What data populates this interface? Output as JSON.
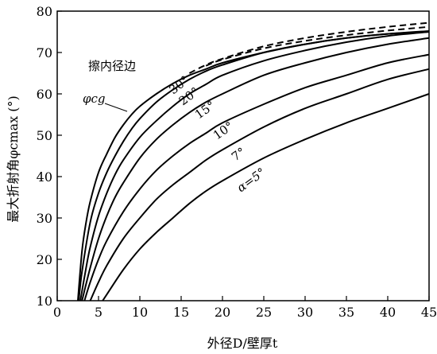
{
  "chart_data": {
    "type": "line",
    "xlabel": "外径D/壁厚t",
    "ylabel": "最大折射角φcmax (°)",
    "xlim": [
      0,
      45
    ],
    "ylim": [
      10,
      80
    ],
    "xticks": [
      "0",
      "5",
      "10",
      "15",
      "20",
      "25",
      "30",
      "35",
      "40",
      "45"
    ],
    "yticks": [
      "10",
      "20",
      "30",
      "40",
      "50",
      "60",
      "70",
      "80"
    ],
    "annotation": "擦内径边",
    "series": [
      {
        "name": "φcg",
        "style": "solid",
        "x": [
          2.5,
          3,
          3.5,
          4,
          5,
          6,
          7,
          8,
          9,
          10,
          12,
          14,
          16,
          18,
          20,
          25,
          30,
          35,
          40,
          45
        ],
        "y": [
          10,
          22,
          29,
          34,
          41,
          45.5,
          49.5,
          52.5,
          55,
          57,
          60,
          62.5,
          64.5,
          66,
          67.5,
          70,
          72,
          73.5,
          74.5,
          75
        ]
      },
      {
        "name": "30°",
        "style": "solid",
        "x": [
          2.6,
          3,
          4,
          5,
          6,
          7,
          8,
          9,
          10,
          12,
          14,
          16,
          18,
          20,
          25,
          30,
          35,
          40,
          45
        ],
        "y": [
          10,
          17,
          29,
          36,
          41,
          45,
          48.5,
          51.5,
          54,
          58,
          61,
          63.5,
          65.5,
          67,
          70,
          72,
          73.5,
          74.5,
          75.2
        ]
      },
      {
        "name": "20°",
        "style": "solid",
        "x": [
          2.8,
          3.5,
          4,
          5,
          6,
          7,
          8,
          10,
          12,
          14,
          16,
          18,
          20,
          25,
          30,
          35,
          40,
          45
        ],
        "y": [
          10,
          18,
          23,
          30.5,
          36,
          40.5,
          44,
          49.5,
          53.5,
          57,
          60,
          62.3,
          64.5,
          68,
          70.5,
          72.5,
          74,
          75
        ]
      },
      {
        "name": "15°",
        "style": "solid",
        "x": [
          3.0,
          4,
          5,
          6,
          7,
          8,
          10,
          12,
          14,
          16,
          18,
          20,
          25,
          30,
          35,
          40,
          45
        ],
        "y": [
          10,
          18,
          25,
          30.5,
          35,
          38.5,
          44.5,
          49,
          52.5,
          55.5,
          58,
          60,
          64.5,
          67.5,
          70,
          72,
          73.5
        ]
      },
      {
        "name": "10°",
        "style": "solid",
        "x": [
          3.3,
          4,
          5,
          6,
          8,
          10,
          12,
          14,
          16,
          18,
          20,
          25,
          30,
          35,
          40,
          45
        ],
        "y": [
          10,
          14.5,
          20,
          24.5,
          31.5,
          37,
          41.5,
          45,
          48,
          50.5,
          53,
          57.5,
          61.5,
          64.5,
          67.5,
          69.5
        ]
      },
      {
        "name": "7°",
        "style": "solid",
        "x": [
          4.0,
          5,
          6,
          8,
          10,
          12,
          14,
          16,
          18,
          20,
          25,
          30,
          35,
          40,
          45
        ],
        "y": [
          10,
          14.5,
          18.5,
          25,
          30,
          34.5,
          38,
          41,
          44,
          46.5,
          52,
          56.5,
          60,
          63.5,
          66
        ]
      },
      {
        "name": "α=5°",
        "style": "solid",
        "x": [
          5.5,
          6,
          8,
          10,
          12,
          14,
          16,
          18,
          20,
          25,
          30,
          35,
          40,
          45
        ],
        "y": [
          10,
          11.5,
          17.5,
          22.5,
          26.5,
          30,
          33.5,
          36.5,
          39,
          44.5,
          49,
          53,
          56.5,
          60
        ]
      },
      {
        "name": "",
        "style": "dashed",
        "x": [
          16,
          18,
          20,
          25,
          30,
          35,
          40,
          45
        ],
        "y": [
          65,
          67,
          68.5,
          71.5,
          73.5,
          75,
          76.2,
          77.2
        ]
      },
      {
        "name": "",
        "style": "dashed",
        "x": [
          18,
          20,
          25,
          30,
          35,
          40,
          45
        ],
        "y": [
          66.8,
          68.3,
          71,
          72.8,
          74.2,
          75.3,
          76.2
        ]
      }
    ]
  }
}
